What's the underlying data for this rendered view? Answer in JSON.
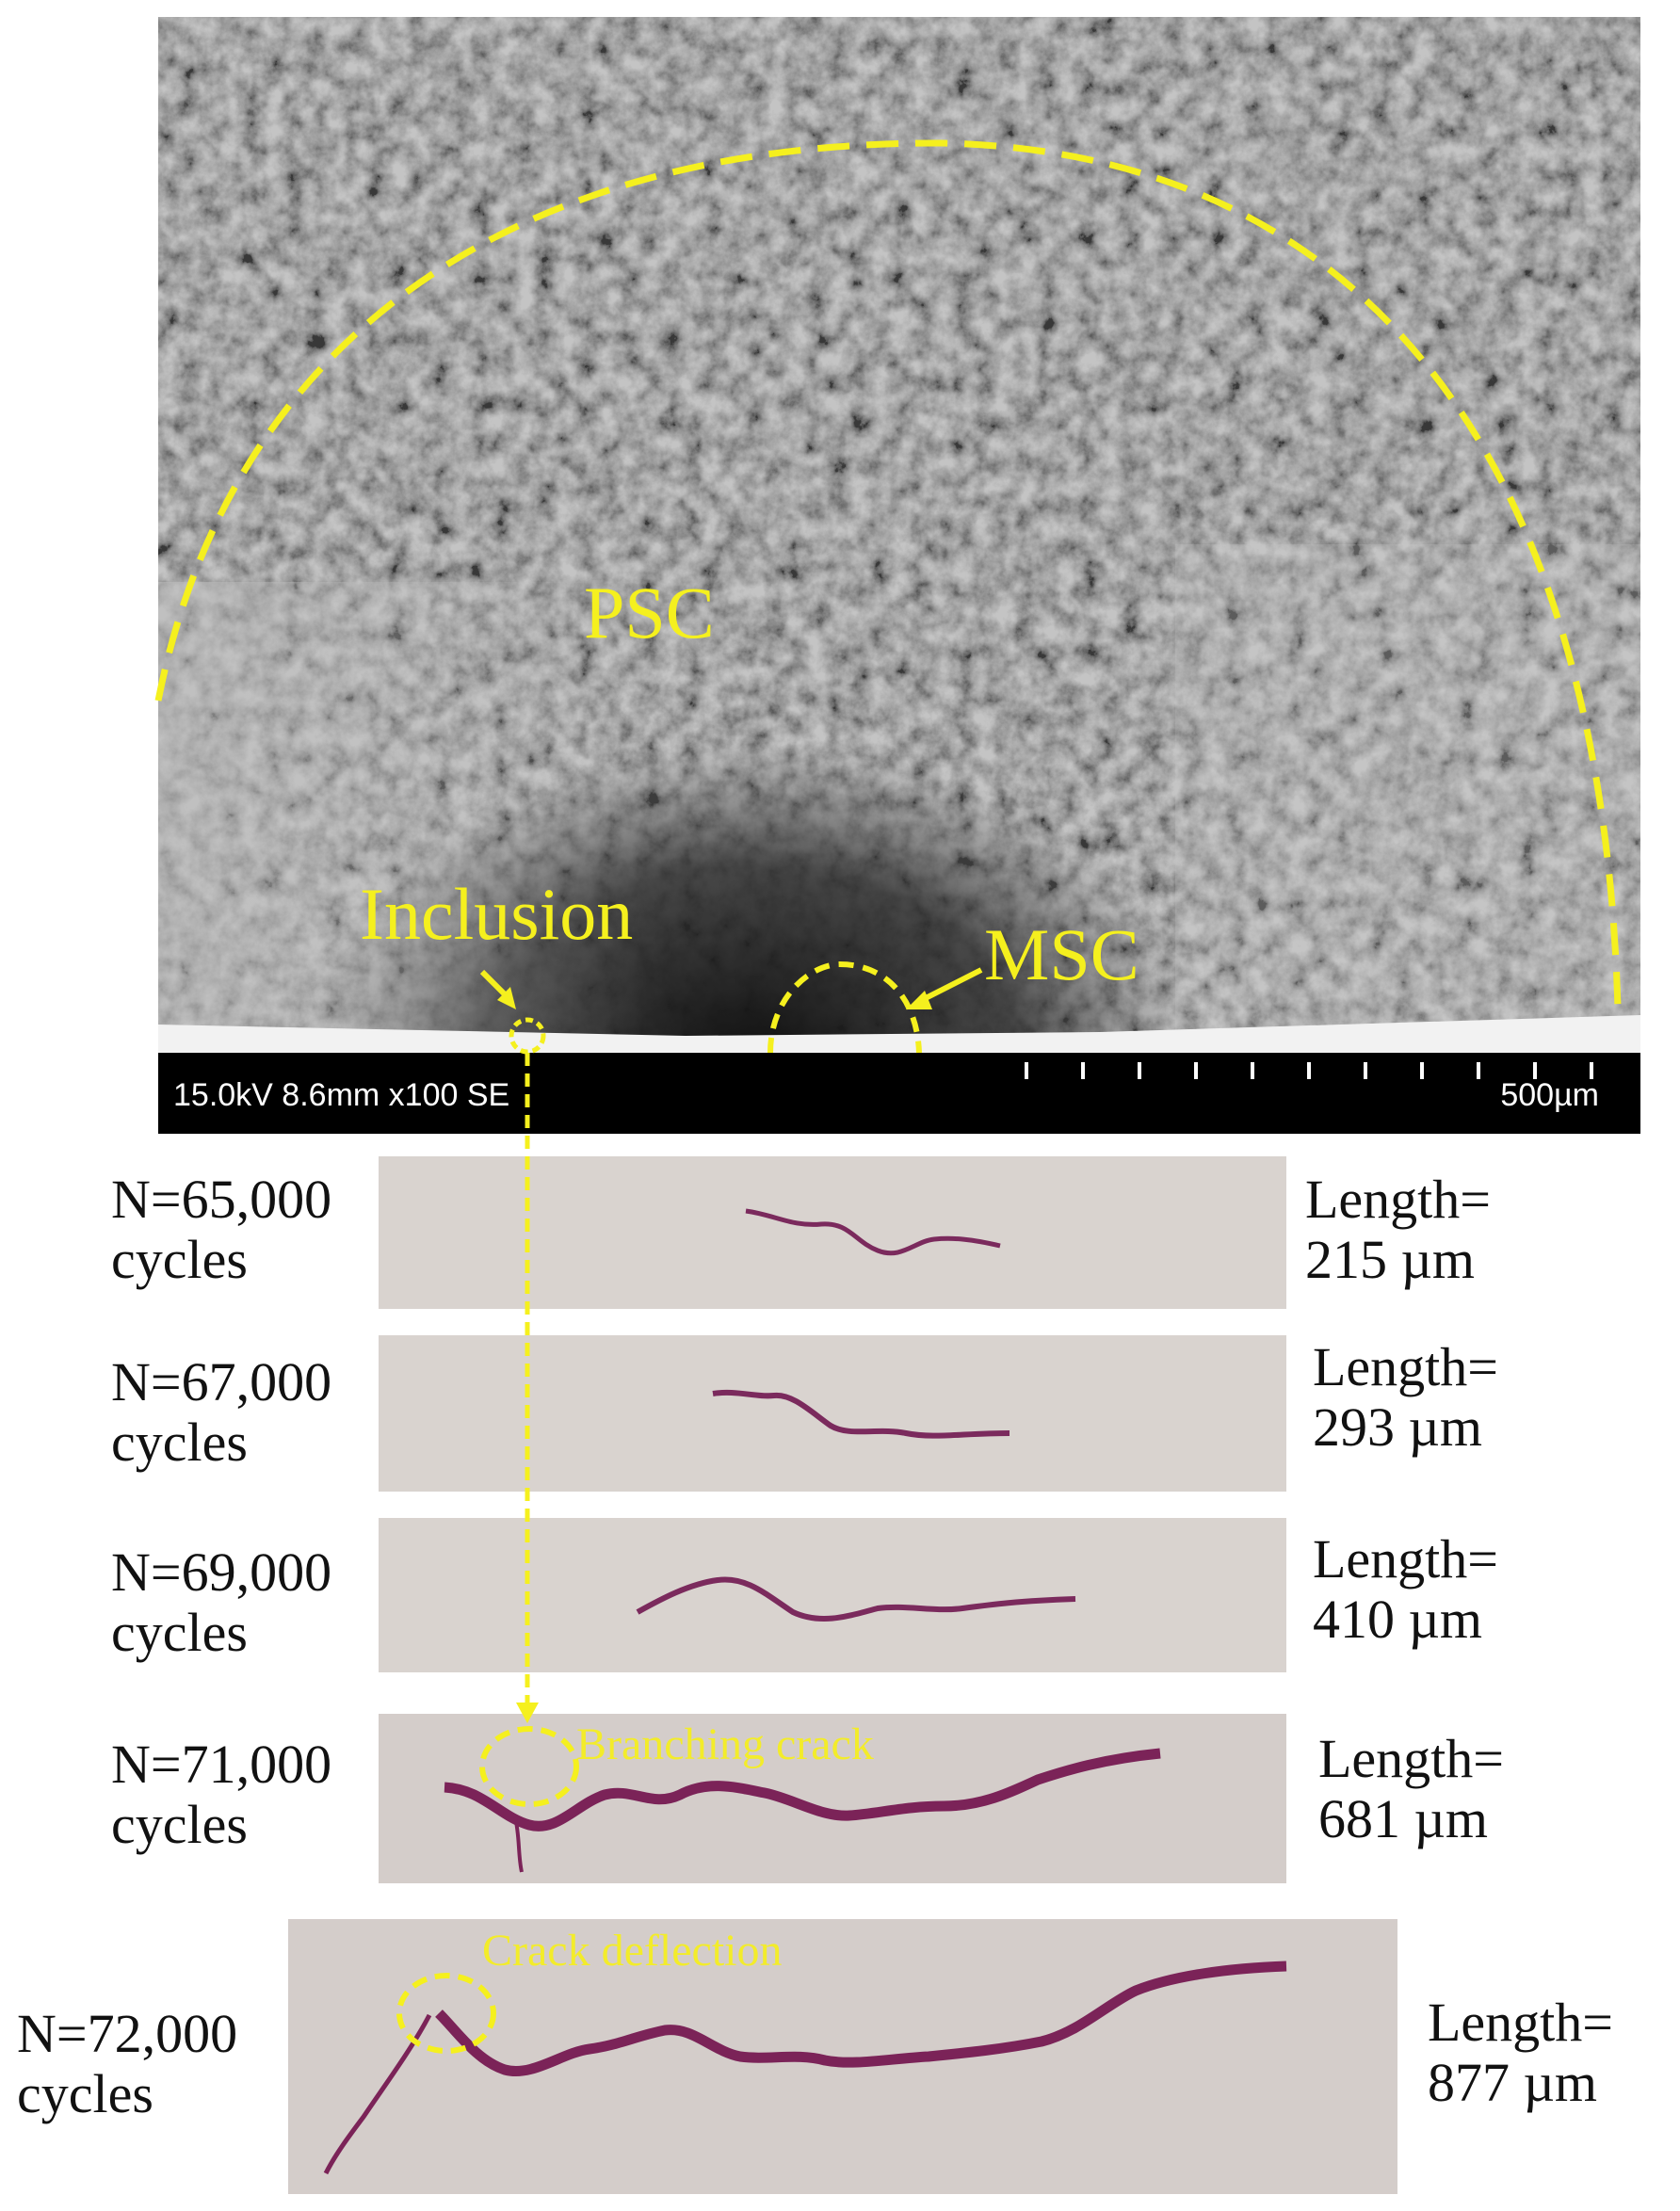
{
  "sem": {
    "labels": {
      "psc": "PSC",
      "inclusion": "Inclusion",
      "msc": "MSC"
    },
    "scalebar": {
      "info": "15.0kV 8.6mm x100 SE",
      "scale": "500µm"
    }
  },
  "panels": [
    {
      "cycles": "N=65,000",
      "cycles_unit": "cycles",
      "length_label": "Length=",
      "length_value": "215 µm",
      "annotation": ""
    },
    {
      "cycles": "N=67,000",
      "cycles_unit": "cycles",
      "length_label": "Length=",
      "length_value": "293 µm",
      "annotation": ""
    },
    {
      "cycles": "N=69,000",
      "cycles_unit": "cycles",
      "length_label": "Length=",
      "length_value": "410 µm",
      "annotation": ""
    },
    {
      "cycles": "N=71,000",
      "cycles_unit": "cycles",
      "length_label": "Length=",
      "length_value": "681 µm",
      "annotation": "Branching crack"
    },
    {
      "cycles": "N=72,000",
      "cycles_unit": "cycles",
      "length_label": "Length=",
      "length_value": "877 µm",
      "annotation": "Crack deflection"
    }
  ],
  "colors": {
    "annotation_yellow": "#f5f01e",
    "crack_magenta": "#7a1f5a",
    "panel_background": "#d8d1cd"
  }
}
